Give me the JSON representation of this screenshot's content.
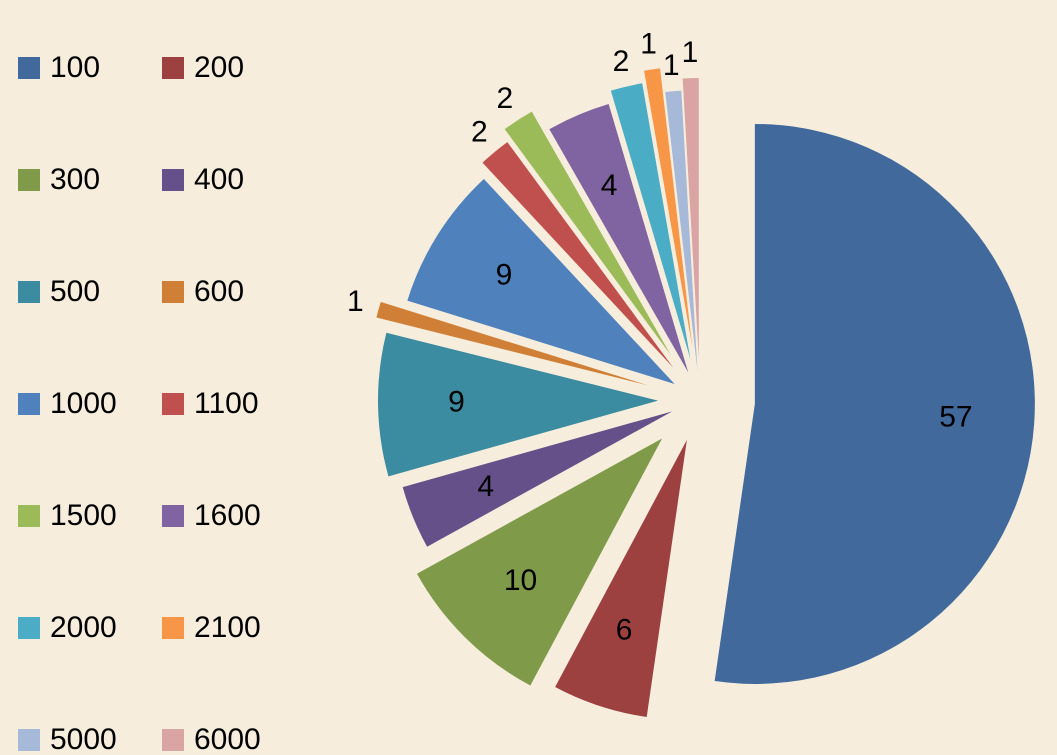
{
  "chart_data": {
    "type": "pie",
    "categories": [
      "100",
      "200",
      "300",
      "400",
      "500",
      "600",
      "1000",
      "1100",
      "1500",
      "1600",
      "2000",
      "2100",
      "5000",
      "6000"
    ],
    "values": [
      57,
      6,
      10,
      4,
      9,
      1,
      9,
      2,
      2,
      4,
      2,
      1,
      1,
      1
    ],
    "colors": [
      "#41699c",
      "#9d4140",
      "#7f9a48",
      "#66508a",
      "#3b8ba1",
      "#d07f36",
      "#4f81bd",
      "#c0504d",
      "#9bbb59",
      "#8064a2",
      "#4bacc6",
      "#f79646",
      "#a7b9d8",
      "#d9a4a3"
    ],
    "legend": "left"
  }
}
